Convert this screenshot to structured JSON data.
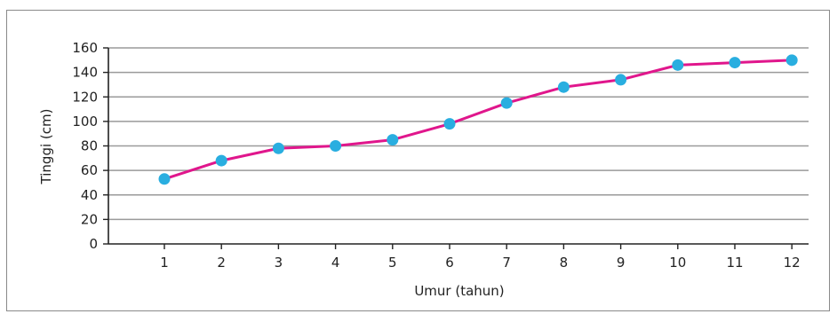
{
  "chart_data": {
    "type": "line",
    "title": "",
    "xlabel": "Umur (tahun)",
    "ylabel": "Tinggi (cm)",
    "x": [
      1,
      2,
      3,
      4,
      5,
      6,
      7,
      8,
      9,
      10,
      11,
      12
    ],
    "xticks": [
      "1",
      "2",
      "3",
      "4",
      "5",
      "6",
      "7",
      "8",
      "9",
      "10",
      "11",
      "12"
    ],
    "yticks": [
      "0",
      "20",
      "40",
      "60",
      "80",
      "100",
      "120",
      "140",
      "160"
    ],
    "ylim": [
      0,
      160
    ],
    "grid": true,
    "series": [
      {
        "values": [
          53,
          68,
          78,
          80,
          85,
          98,
          115,
          128,
          134,
          146,
          148,
          150
        ],
        "line_color": "#e0168c",
        "marker_color": "#29aee0"
      }
    ]
  }
}
